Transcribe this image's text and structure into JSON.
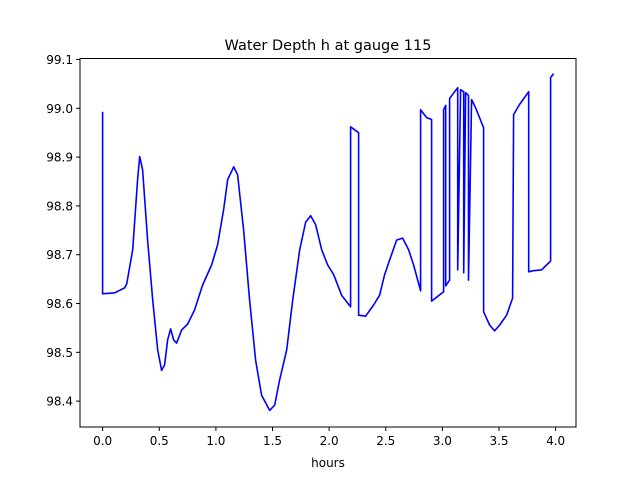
{
  "chart_data": {
    "type": "line",
    "title": "Water Depth h at gauge 115",
    "xlabel": "hours",
    "ylabel": "",
    "xlim": [
      -0.2,
      4.18
    ],
    "ylim": [
      98.347,
      99.102
    ],
    "xticks": [
      0.0,
      0.5,
      1.0,
      1.5,
      2.0,
      2.5,
      3.0,
      3.5,
      4.0
    ],
    "xtick_labels": [
      "0.0",
      "0.5",
      "1.0",
      "1.5",
      "2.0",
      "2.5",
      "3.0",
      "3.5",
      "4.0"
    ],
    "yticks": [
      98.4,
      98.5,
      98.6,
      98.7,
      98.8,
      98.9,
      99.0,
      99.1
    ],
    "ytick_labels": [
      "98.4",
      "98.5",
      "98.6",
      "98.7",
      "98.8",
      "98.9",
      "99.0",
      "99.1"
    ],
    "grid": false,
    "series": [
      {
        "name": "h",
        "color": "#0000ff",
        "x": [
          0,
          0,
          0.106,
          0.194,
          0.212,
          0.265,
          0.309,
          0.327,
          0.353,
          0.397,
          0.442,
          0.486,
          0.521,
          0.547,
          0.574,
          0.6,
          0.627,
          0.653,
          0.698,
          0.751,
          0.812,
          0.883,
          0.962,
          1.015,
          1.068,
          1.104,
          1.157,
          1.192,
          1.245,
          1.298,
          1.351,
          1.404,
          1.475,
          1.519,
          1.563,
          1.625,
          1.678,
          1.74,
          1.793,
          1.837,
          1.881,
          1.934,
          1.987,
          2.04,
          2.11,
          2.19,
          2.19,
          2.26,
          2.26,
          2.322,
          2.393,
          2.446,
          2.49,
          2.534,
          2.596,
          2.649,
          2.702,
          2.746,
          2.808,
          2.808,
          2.861,
          2.905,
          2.905,
          3.011,
          3.011,
          3.029,
          3.029,
          3.064,
          3.064,
          3.108,
          3.135,
          3.135,
          3.161,
          3.188,
          3.188,
          3.205,
          3.231,
          3.231,
          3.258,
          3.293,
          3.364,
          3.364,
          3.417,
          3.461,
          3.506,
          3.567,
          3.62,
          3.629,
          3.682,
          3.762,
          3.762,
          3.797,
          3.876,
          3.938,
          3.956,
          3.956,
          3.982
        ],
        "y": [
          98.993,
          98.62,
          98.622,
          98.632,
          98.64,
          98.71,
          98.854,
          98.901,
          98.874,
          98.73,
          98.607,
          98.505,
          98.463,
          98.474,
          98.525,
          98.548,
          98.525,
          98.519,
          98.546,
          98.558,
          98.587,
          98.638,
          98.679,
          98.72,
          98.792,
          98.854,
          98.88,
          98.864,
          98.751,
          98.607,
          98.484,
          98.412,
          98.381,
          98.392,
          98.443,
          98.505,
          98.607,
          98.71,
          98.767,
          98.78,
          98.761,
          98.71,
          98.679,
          98.659,
          98.617,
          98.593,
          98.962,
          98.95,
          98.576,
          98.574,
          98.597,
          98.617,
          98.659,
          98.689,
          98.73,
          98.734,
          98.71,
          98.679,
          98.626,
          98.997,
          98.981,
          98.977,
          98.605,
          98.624,
          98.997,
          99.006,
          98.636,
          98.648,
          99.02,
          99.034,
          99.042,
          98.669,
          99.038,
          99.034,
          98.663,
          99.032,
          99.026,
          98.648,
          99.018,
          99.001,
          98.96,
          98.583,
          98.556,
          98.544,
          98.556,
          98.576,
          98.611,
          98.987,
          99.008,
          99.034,
          98.665,
          98.667,
          98.669,
          98.683,
          98.687,
          99.063,
          99.071
        ]
      }
    ]
  }
}
